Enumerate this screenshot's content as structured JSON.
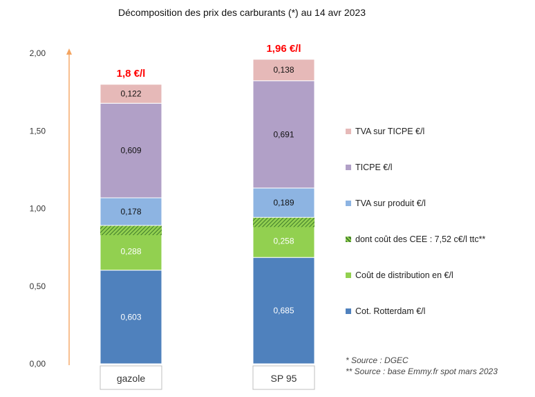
{
  "chart_data": {
    "type": "bar",
    "stacked": true,
    "title": "Décomposition des prix des carburants (*) au 14 avr 2023",
    "categories": [
      "gazole",
      "SP 95"
    ],
    "totals_labels": [
      "1,8 €/l",
      "1,96 €/l"
    ],
    "ylim": [
      0,
      2
    ],
    "yticks": [
      "0,00",
      "0,50",
      "1,00",
      "1,50",
      "2,00"
    ],
    "yticks_values": [
      0,
      0.5,
      1.0,
      1.5,
      2.0
    ],
    "grid": false,
    "legend_position": "right",
    "series": [
      {
        "name": "Cot. Rotterdam €/l",
        "values": [
          0.603,
          0.685
        ],
        "labels": [
          "0,603",
          "0,685"
        ],
        "color": "#4f81bd",
        "label_color": "#ffffff"
      },
      {
        "name": "Coût de distribution en €/l",
        "values": [
          0.288,
          0.258
        ],
        "labels": [
          "0,288",
          "0,258"
        ],
        "color": "#92d050",
        "label_color": "#ffffff"
      },
      {
        "name": "dont coût des CEE : 7,52 c€/l ttc**",
        "values": [
          0.0752,
          0.0752
        ],
        "labels": [
          "",
          ""
        ],
        "color": "#5a9a3c",
        "hatched": true,
        "included_in_previous": true
      },
      {
        "name": "TVA sur produit €/l",
        "values": [
          0.178,
          0.189
        ],
        "labels": [
          "0,178",
          "0,189"
        ],
        "color": "#8db4e2",
        "label_color": "#111111"
      },
      {
        "name": "TICPE €/l",
        "values": [
          0.609,
          0.691
        ],
        "labels": [
          "0,609",
          "0,691"
        ],
        "color": "#b1a0c7",
        "label_color": "#111111"
      },
      {
        "name": "TVA sur TICPE €/l",
        "values": [
          0.122,
          0.138
        ],
        "labels": [
          "0,122",
          "0,138"
        ],
        "color": "#e6b9b8",
        "label_color": "#111111"
      }
    ],
    "legend_order": [
      "TVA sur TICPE €/l",
      "TICPE €/l",
      "TVA sur produit €/l",
      "dont coût des CEE : 7,52 c€/l ttc**",
      "Coût de distribution en €/l",
      "Cot. Rotterdam €/l"
    ],
    "annotations": {
      "arrow_color": "#f4a460",
      "total_color": "#ff0000"
    }
  },
  "sources": [
    "* Source : DGEC",
    "** Source : base Emmy.fr spot mars 2023"
  ]
}
